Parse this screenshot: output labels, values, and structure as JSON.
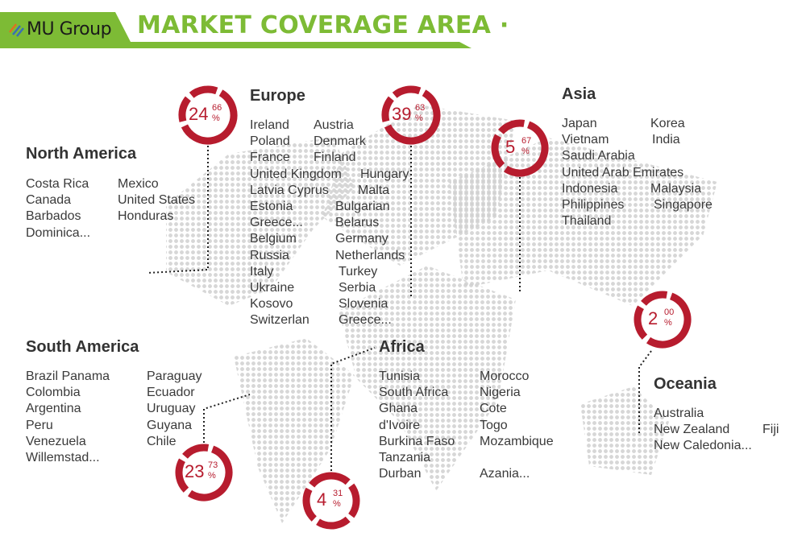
{
  "header": {
    "logo": "MU Group",
    "title": "MARKET COVERAGE AREA ·",
    "accent": "#7dbb35"
  },
  "ring_color": "#b71c2e",
  "regions": {
    "north_america": {
      "title": "North America",
      "left": [
        "Costa Rica",
        "Canada",
        "Barbados",
        "Dominica..."
      ],
      "right": [
        "Mexico",
        "United States",
        "Honduras"
      ],
      "percent_int": "24",
      "percent_dec": "66"
    },
    "europe": {
      "title": "Europe",
      "rows": [
        [
          "Ireland",
          "Austria"
        ],
        [
          "Poland",
          "Denmark"
        ],
        [
          "France",
          "Finland"
        ],
        [
          "United Kingdom",
          "Hungary"
        ],
        [
          "Latvia Cyprus",
          "Malta"
        ],
        [
          "Estonia",
          "Bulgarian"
        ],
        [
          "Greece...",
          "Belarus"
        ],
        [
          "Belgium",
          "Germany"
        ],
        [
          "Russia",
          "Netherlands"
        ],
        [
          "Italy",
          "Turkey"
        ],
        [
          "Ukraine",
          "Serbia"
        ],
        [
          "Kosovo",
          "Slovenia"
        ],
        [
          "Switzerlan",
          "Greece..."
        ]
      ],
      "percent_int": "39",
      "percent_dec": "63"
    },
    "asia": {
      "title": "Asia",
      "rows": [
        [
          "Japan",
          "Korea"
        ],
        [
          "Vietnam",
          "India"
        ],
        [
          "Saudi Arabia",
          ""
        ],
        [
          "United Arab Emirates",
          ""
        ],
        [
          "Indonesia",
          "Malaysia"
        ],
        [
          "Philippines",
          "Singapore"
        ],
        [
          "Thailand",
          ""
        ]
      ],
      "percent_int": "5",
      "percent_dec": "67"
    },
    "south_america": {
      "title": "South America",
      "left": [
        "Brazil  Panama",
        "Colombia",
        "Argentina",
        "Peru",
        "Venezuela",
        "Willemstad..."
      ],
      "right": [
        "Paraguay",
        "Ecuador",
        "Uruguay",
        "Guyana",
        "Chile"
      ],
      "percent_int": "23",
      "percent_dec": "73"
    },
    "africa": {
      "title": "Africa",
      "left": [
        "Tunisia",
        "South Africa",
        "Ghana",
        "d'Ivoire",
        "Burkina Faso",
        "Tanzania",
        "Durban"
      ],
      "right": [
        "Morocco",
        "Nigeria",
        "Cote",
        "Togo",
        "Mozambique",
        "",
        "Azania..."
      ],
      "percent_int": "4",
      "percent_dec": "31"
    },
    "oceania": {
      "title": "Oceania",
      "left": [
        "Australia",
        "New Zealand",
        "New Caledonia..."
      ],
      "right": [
        "",
        "Fiji"
      ],
      "percent_int": "2",
      "percent_dec": "00"
    }
  },
  "percent_sign": "%"
}
